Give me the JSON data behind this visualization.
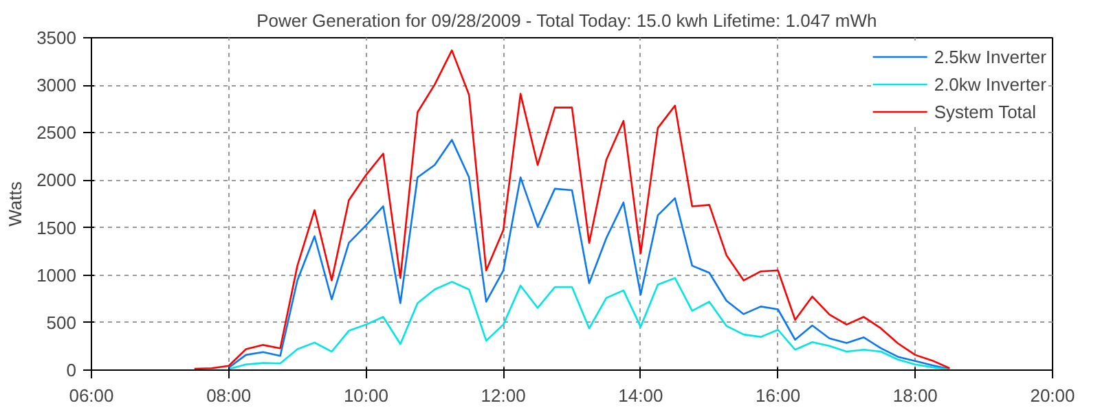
{
  "chart_data": {
    "type": "line",
    "title": "Power Generation for 09/28/2009 - Total Today: 15.0 kwh   Lifetime: 1.047 mWh",
    "ylabel": "Watts",
    "x": [
      7.5,
      7.75,
      8.0,
      8.25,
      8.5,
      8.75,
      9.0,
      9.25,
      9.5,
      9.75,
      10.0,
      10.25,
      10.5,
      10.75,
      11.0,
      11.25,
      11.5,
      11.75,
      12.0,
      12.25,
      12.5,
      12.75,
      13.0,
      13.25,
      13.5,
      13.75,
      14.0,
      14.25,
      14.5,
      14.75,
      15.0,
      15.25,
      15.5,
      15.75,
      16.0,
      16.25,
      16.5,
      16.75,
      17.0,
      17.25,
      17.5,
      17.75,
      18.0,
      18.25,
      18.5
    ],
    "series": [
      {
        "name": "2.5kw Inverter",
        "color": "#0a78f0",
        "values": [
          null,
          null,
          25,
          160,
          190,
          150,
          945,
          1410,
          745,
          1340,
          1525,
          1725,
          705,
          2030,
          2160,
          2425,
          2030,
          720,
          1050,
          2030,
          1510,
          1910,
          1895,
          915,
          1390,
          1765,
          795,
          1630,
          1810,
          1100,
          1025,
          730,
          590,
          670,
          640,
          320,
          470,
          335,
          285,
          345,
          230,
          140,
          95,
          50,
          10
        ]
      },
      {
        "name": "2.0kw Inverter",
        "color": "#00e5e5",
        "values": [
          null,
          null,
          10,
          60,
          75,
          70,
          220,
          290,
          195,
          415,
          480,
          560,
          275,
          705,
          850,
          930,
          850,
          310,
          480,
          890,
          655,
          875,
          875,
          440,
          760,
          840,
          455,
          900,
          970,
          625,
          720,
          465,
          375,
          350,
          425,
          215,
          295,
          255,
          195,
          215,
          195,
          110,
          60,
          30,
          5
        ]
      },
      {
        "name": "System Total",
        "color": "#ff0000",
        "values": [
          15,
          20,
          45,
          220,
          265,
          230,
          1100,
          1685,
          945,
          1790,
          2055,
          2280,
          970,
          2715,
          3007,
          3367,
          2900,
          1050,
          1475,
          2910,
          2160,
          2765,
          2765,
          1340,
          2215,
          2625,
          1230,
          2550,
          2785,
          1725,
          1740,
          1210,
          945,
          1040,
          1050,
          530,
          775,
          585,
          480,
          560,
          440,
          280,
          160,
          100,
          20
        ]
      }
    ],
    "xlim": [
      6,
      20
    ],
    "xticks": [
      {
        "value": 6,
        "label": "06:00"
      },
      {
        "value": 8,
        "label": "08:00"
      },
      {
        "value": 10,
        "label": "10:00"
      },
      {
        "value": 12,
        "label": "12:00"
      },
      {
        "value": 14,
        "label": "14:00"
      },
      {
        "value": 16,
        "label": "16:00"
      },
      {
        "value": 18,
        "label": "18:00"
      },
      {
        "value": 20,
        "label": "20:00"
      }
    ],
    "ylim": [
      0,
      3500
    ],
    "yticks": [
      0,
      500,
      1000,
      1500,
      2000,
      2500,
      3000,
      3500
    ],
    "grid": true,
    "legend": "top right",
    "marker": "none",
    "line_style": "solid"
  }
}
